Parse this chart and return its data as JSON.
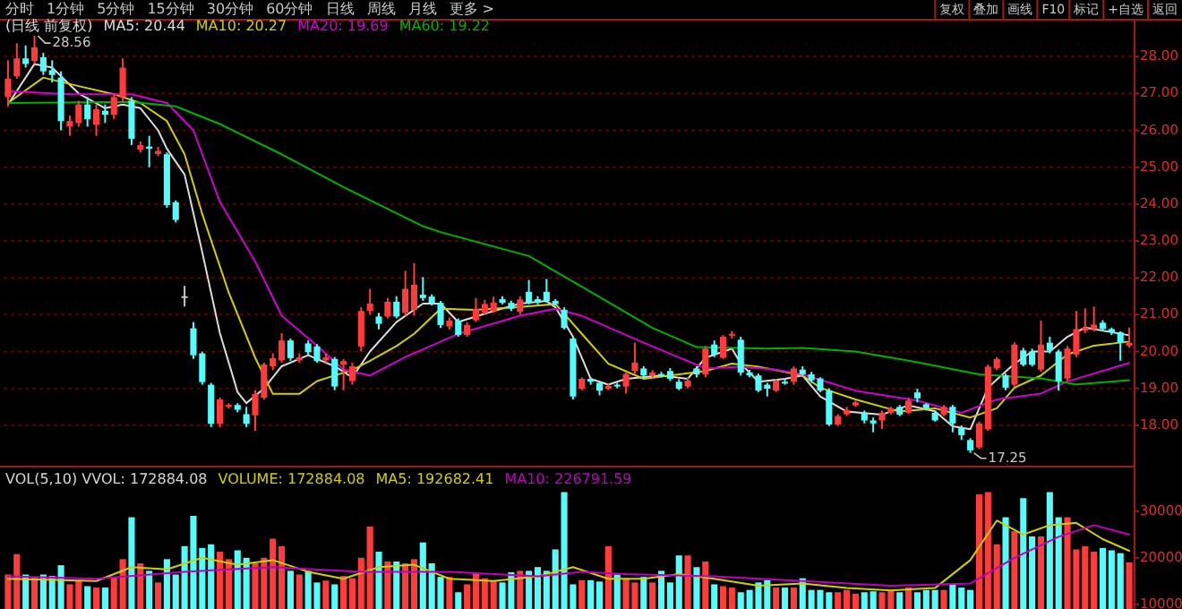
{
  "chart_data": [
    {
      "type": "candlestick",
      "subtitle": "(日线 前复权)",
      "legend": "top left",
      "grid": "y",
      "ylim": [
        17.0,
        29.0
      ],
      "yticks": [
        {
          "value": 18,
          "label": "18.00"
        },
        {
          "value": 19,
          "label": "19.00"
        },
        {
          "value": 20,
          "label": "20.00"
        },
        {
          "value": 21,
          "label": "21.00"
        },
        {
          "value": 22,
          "label": "22.00"
        },
        {
          "value": 23,
          "label": "23.00"
        },
        {
          "value": 24,
          "label": "24.00"
        },
        {
          "value": 25,
          "label": "25.00"
        },
        {
          "value": 26,
          "label": "26.00"
        },
        {
          "value": 27,
          "label": "27.00"
        },
        {
          "value": 28,
          "label": "28.00"
        }
      ],
      "categories": [
        null,
        null,
        null,
        null,
        null,
        null,
        null,
        null,
        null,
        null,
        null,
        null,
        null,
        null,
        null,
        null,
        null,
        null,
        null,
        null,
        null,
        null,
        null,
        null,
        null,
        null,
        null,
        null,
        null,
        null,
        null,
        null,
        null,
        null,
        null,
        null,
        null,
        null,
        null,
        null,
        null,
        null,
        null,
        null,
        null,
        null,
        null,
        null,
        null,
        null,
        null,
        null,
        null,
        null,
        null,
        null,
        null,
        null,
        null,
        null,
        null,
        null,
        null,
        null,
        null,
        null,
        null,
        null,
        null,
        null,
        null,
        null,
        null,
        null,
        null,
        null,
        null,
        null,
        null,
        null,
        null,
        null,
        null,
        null,
        null,
        null,
        null,
        null,
        null,
        null,
        null,
        null,
        null,
        null,
        null,
        null,
        null,
        null,
        null,
        null,
        null,
        null,
        null,
        null,
        null,
        null,
        null,
        null,
        null,
        null,
        null,
        null,
        null,
        null,
        null,
        null,
        null,
        null,
        null,
        null,
        null,
        null,
        null,
        null,
        null,
        null,
        null,
        null
      ],
      "ohlc": [
        [
          26.9,
          27.9,
          26.65,
          27.4
        ],
        [
          27.47,
          28.36,
          27.4,
          27.95
        ],
        [
          27.95,
          28.3,
          27.7,
          27.8
        ],
        [
          27.88,
          28.56,
          27.8,
          28.25
        ],
        [
          27.98,
          28.1,
          27.5,
          27.6
        ],
        [
          27.63,
          27.9,
          27.3,
          27.5
        ],
        [
          27.43,
          27.6,
          26.0,
          26.25
        ],
        [
          26.1,
          26.4,
          25.85,
          26.25
        ],
        [
          26.2,
          26.8,
          26.1,
          26.7
        ],
        [
          26.7,
          26.9,
          26.1,
          26.3
        ],
        [
          26.15,
          26.7,
          25.85,
          26.57
        ],
        [
          26.53,
          26.7,
          26.2,
          26.42
        ],
        [
          26.42,
          27.0,
          26.3,
          26.9
        ],
        [
          26.9,
          27.95,
          26.75,
          27.7
        ],
        [
          26.8,
          26.9,
          25.6,
          25.77
        ],
        [
          25.47,
          25.7,
          25.4,
          25.6
        ],
        [
          25.56,
          25.85,
          25.0,
          25.5
        ],
        [
          25.36,
          25.55,
          25.3,
          25.44
        ],
        [
          25.35,
          25.4,
          23.9,
          23.97
        ],
        [
          24.05,
          24.1,
          23.5,
          23.57
        ],
        [
          21.5,
          21.78,
          21.22,
          21.5
        ],
        [
          20.63,
          20.8,
          19.8,
          19.9
        ],
        [
          19.95,
          20.0,
          19.1,
          19.17
        ],
        [
          19.1,
          19.15,
          17.95,
          18.04
        ],
        [
          18.04,
          18.75,
          17.95,
          18.7
        ],
        [
          18.5,
          18.6,
          18.45,
          18.55
        ],
        [
          18.55,
          18.6,
          18.35,
          18.42
        ],
        [
          18.3,
          18.5,
          17.95,
          18.04
        ],
        [
          18.27,
          18.95,
          17.85,
          18.85
        ],
        [
          18.75,
          19.7,
          18.7,
          19.65
        ],
        [
          19.6,
          19.95,
          19.5,
          19.82
        ],
        [
          19.76,
          20.5,
          19.7,
          20.3
        ],
        [
          20.3,
          20.35,
          19.75,
          19.82
        ],
        [
          19.76,
          19.95,
          19.7,
          19.84
        ],
        [
          20.22,
          20.3,
          19.9,
          19.98
        ],
        [
          20.14,
          20.2,
          19.7,
          19.74
        ],
        [
          19.76,
          19.95,
          19.7,
          19.84
        ],
        [
          19.8,
          19.85,
          18.95,
          19.05
        ],
        [
          19.65,
          19.8,
          18.95,
          19.74
        ],
        [
          19.2,
          19.7,
          19.1,
          19.6
        ],
        [
          20.14,
          21.2,
          20.0,
          21.1
        ],
        [
          21.1,
          21.7,
          21.0,
          21.3
        ],
        [
          20.95,
          21.05,
          20.6,
          20.75
        ],
        [
          20.95,
          21.45,
          20.9,
          21.35
        ],
        [
          21.35,
          21.5,
          20.9,
          20.95
        ],
        [
          21.05,
          22.19,
          20.97,
          21.7
        ],
        [
          21.13,
          22.4,
          20.97,
          21.81
        ],
        [
          21.54,
          22.02,
          21.37,
          21.45
        ],
        [
          21.49,
          21.55,
          21.25,
          21.32
        ],
        [
          21.32,
          21.37,
          20.64,
          20.72
        ],
        [
          20.68,
          20.92,
          20.6,
          20.84
        ],
        [
          20.84,
          20.9,
          20.4,
          20.45
        ],
        [
          20.45,
          20.8,
          20.4,
          20.72
        ],
        [
          20.85,
          21.45,
          20.8,
          21.16
        ],
        [
          21.05,
          21.4,
          21.0,
          21.29
        ],
        [
          21.1,
          21.49,
          21.05,
          21.33
        ],
        [
          21.42,
          21.5,
          21.28,
          21.32
        ],
        [
          21.32,
          21.38,
          21.1,
          21.16
        ],
        [
          21.08,
          21.5,
          21.0,
          21.41
        ],
        [
          21.62,
          21.94,
          21.28,
          21.32
        ],
        [
          21.42,
          21.5,
          21.28,
          21.32
        ],
        [
          21.62,
          21.97,
          21.32,
          21.37
        ],
        [
          21.37,
          21.42,
          21.25,
          21.29
        ],
        [
          21.13,
          21.2,
          20.6,
          20.64
        ],
        [
          20.35,
          20.4,
          18.7,
          18.78
        ],
        [
          18.99,
          19.3,
          18.95,
          19.26
        ],
        [
          19.26,
          19.3,
          19.1,
          19.18
        ],
        [
          19.15,
          19.2,
          18.81,
          18.94
        ],
        [
          18.99,
          19.12,
          18.95,
          19.07
        ],
        [
          19.1,
          19.15,
          19.0,
          19.05
        ],
        [
          19.05,
          19.45,
          18.86,
          19.39
        ],
        [
          19.47,
          20.24,
          19.4,
          19.7
        ],
        [
          19.54,
          19.6,
          19.3,
          19.35
        ],
        [
          19.35,
          19.5,
          19.3,
          19.43
        ],
        [
          19.39,
          19.45,
          19.3,
          19.35
        ],
        [
          19.47,
          19.55,
          19.2,
          19.26
        ],
        [
          19.18,
          19.25,
          18.95,
          18.99
        ],
        [
          19.05,
          19.3,
          19.0,
          19.21
        ],
        [
          19.54,
          19.6,
          19.3,
          19.38
        ],
        [
          19.38,
          20.15,
          19.3,
          20.08
        ],
        [
          20.19,
          20.3,
          19.85,
          19.91
        ],
        [
          19.83,
          20.45,
          19.8,
          20.4
        ],
        [
          20.45,
          20.56,
          20.35,
          20.48
        ],
        [
          20.32,
          20.4,
          19.35,
          19.43
        ],
        [
          19.43,
          19.5,
          19.3,
          19.35
        ],
        [
          19.35,
          19.4,
          18.9,
          18.94
        ],
        [
          19.1,
          19.15,
          18.78,
          18.99
        ],
        [
          18.94,
          19.25,
          18.9,
          19.21
        ],
        [
          19.18,
          19.25,
          19.1,
          19.15
        ],
        [
          19.18,
          19.6,
          19.1,
          19.54
        ],
        [
          19.51,
          19.6,
          19.35,
          19.38
        ],
        [
          19.38,
          19.45,
          19.15,
          19.22
        ],
        [
          19.27,
          19.3,
          18.9,
          18.94
        ],
        [
          18.94,
          19.0,
          17.98,
          18.02
        ],
        [
          18.02,
          18.3,
          17.98,
          18.25
        ],
        [
          18.3,
          18.5,
          18.25,
          18.41
        ],
        [
          18.54,
          18.67,
          18.5,
          18.62
        ],
        [
          18.34,
          18.4,
          18.05,
          18.13
        ],
        [
          18.13,
          18.21,
          17.81,
          18.05
        ],
        [
          18.13,
          18.4,
          17.9,
          18.34
        ],
        [
          18.34,
          18.5,
          18.3,
          18.46
        ],
        [
          18.5,
          18.55,
          18.25,
          18.29
        ],
        [
          18.34,
          18.75,
          18.3,
          18.67
        ],
        [
          18.89,
          18.99,
          18.62,
          18.73
        ],
        [
          18.57,
          18.6,
          18.4,
          18.46
        ],
        [
          18.34,
          18.4,
          18.1,
          18.13
        ],
        [
          18.29,
          18.55,
          18.25,
          18.5
        ],
        [
          18.5,
          18.55,
          17.81,
          18.05
        ],
        [
          17.92,
          18.0,
          17.6,
          17.73
        ],
        [
          17.6,
          17.65,
          17.25,
          17.32
        ],
        [
          17.4,
          18.1,
          17.35,
          18.05
        ],
        [
          17.89,
          19.65,
          17.85,
          19.59
        ],
        [
          19.54,
          19.85,
          19.5,
          19.8
        ],
        [
          19.35,
          19.4,
          18.95,
          19.02
        ],
        [
          19.1,
          20.25,
          19.05,
          20.19
        ],
        [
          20.03,
          20.1,
          19.6,
          19.64
        ],
        [
          20.0,
          20.08,
          19.6,
          19.64
        ],
        [
          19.51,
          20.84,
          19.45,
          20.19
        ],
        [
          20.24,
          20.4,
          19.95,
          20.03
        ],
        [
          20.0,
          20.05,
          18.94,
          19.19
        ],
        [
          19.27,
          20.15,
          19.2,
          20.08
        ],
        [
          19.92,
          21.1,
          19.85,
          20.61
        ],
        [
          20.57,
          21.17,
          20.5,
          20.65
        ],
        [
          20.61,
          21.22,
          20.55,
          20.73
        ],
        [
          20.78,
          20.85,
          20.55,
          20.61
        ],
        [
          20.61,
          20.65,
          20.45,
          20.52
        ],
        [
          20.52,
          20.55,
          19.75,
          20.24
        ],
        [
          20.16,
          20.65,
          20.1,
          20.24
        ]
      ],
      "colors": [
        "#ff3c3c",
        "#ff3c3c",
        "#54fcfc",
        "#ff3c3c",
        "#54fcfc",
        "#54fcfc",
        "#54fcfc",
        "#ff3c3c",
        "#ff3c3c",
        "#54fcfc",
        "#ff3c3c",
        "#54fcfc",
        "#ff3c3c",
        "#ff3c3c",
        "#54fcfc",
        "#ff3c3c",
        "#54fcfc",
        "#ff3c3c",
        "#54fcfc",
        "#54fcfc",
        "#c8c8c8",
        "#54fcfc",
        "#54fcfc",
        "#54fcfc",
        "#ff3c3c",
        "#ff3c3c",
        "#54fcfc",
        "#54fcfc",
        "#ff3c3c",
        "#ff3c3c",
        "#ff3c3c",
        "#ff3c3c",
        "#54fcfc",
        "#ff3c3c",
        "#54fcfc",
        "#54fcfc",
        "#ff3c3c",
        "#54fcfc",
        "#ff3c3c",
        "#ff3c3c",
        "#ff3c3c",
        "#ff3c3c",
        "#54fcfc",
        "#ff3c3c",
        "#54fcfc",
        "#ff3c3c",
        "#ff3c3c",
        "#54fcfc",
        "#54fcfc",
        "#54fcfc",
        "#ff3c3c",
        "#54fcfc",
        "#ff3c3c",
        "#ff3c3c",
        "#ff3c3c",
        "#ff3c3c",
        "#54fcfc",
        "#54fcfc",
        "#ff3c3c",
        "#54fcfc",
        "#54fcfc",
        "#54fcfc",
        "#54fcfc",
        "#54fcfc",
        "#54fcfc",
        "#ff3c3c",
        "#54fcfc",
        "#54fcfc",
        "#ff3c3c",
        "#54fcfc",
        "#ff3c3c",
        "#ff3c3c",
        "#54fcfc",
        "#ff3c3c",
        "#54fcfc",
        "#54fcfc",
        "#54fcfc",
        "#ff3c3c",
        "#54fcfc",
        "#ff3c3c",
        "#54fcfc",
        "#ff3c3c",
        "#ff3c3c",
        "#54fcfc",
        "#54fcfc",
        "#54fcfc",
        "#54fcfc",
        "#ff3c3c",
        "#54fcfc",
        "#ff3c3c",
        "#54fcfc",
        "#54fcfc",
        "#54fcfc",
        "#54fcfc",
        "#ff3c3c",
        "#ff3c3c",
        "#ff3c3c",
        "#54fcfc",
        "#54fcfc",
        "#ff3c3c",
        "#ff3c3c",
        "#54fcfc",
        "#ff3c3c",
        "#54fcfc",
        "#54fcfc",
        "#54fcfc",
        "#ff3c3c",
        "#54fcfc",
        "#54fcfc",
        "#54fcfc",
        "#ff3c3c",
        "#ff3c3c",
        "#ff3c3c",
        "#54fcfc",
        "#ff3c3c",
        "#54fcfc",
        "#54fcfc",
        "#ff3c3c",
        "#54fcfc",
        "#54fcfc",
        "#ff3c3c",
        "#ff3c3c",
        "#ff3c3c",
        "#ff3c3c",
        "#54fcfc",
        "#54fcfc",
        "#54fcfc",
        "#ff3c3c"
      ],
      "series": [
        {
          "name": "MA5: 20.44",
          "type": "line",
          "color": "#dcdcdc",
          "values": [
            26.7,
            null,
            null,
            27.8,
            null,
            27.7,
            null,
            null,
            27.0,
            null,
            null,
            26.6,
            null,
            26.7,
            null,
            26.6,
            null,
            26.0,
            25.5,
            null,
            24.8,
            null,
            22.7,
            null,
            20.5,
            null,
            18.9,
            18.6,
            null,
            19.0,
            null,
            19.6,
            null,
            null,
            19.9,
            null,
            null,
            19.6,
            null,
            19.3,
            null,
            20.0,
            null,
            null,
            20.8,
            null,
            null,
            21.3,
            null,
            21.3,
            null,
            20.8,
            null,
            null,
            null,
            21.1,
            null,
            null,
            21.3,
            null,
            null,
            21.37,
            21.2,
            null,
            20.4,
            null,
            19.26,
            null,
            19.1,
            null,
            19.26,
            null,
            null,
            null,
            19.35,
            null,
            null,
            19.26,
            null,
            19.83,
            null,
            null,
            20.08,
            19.67,
            null,
            19.18,
            null,
            null,
            19.26,
            null,
            19.35,
            null,
            18.78,
            null,
            null,
            18.37,
            null,
            null,
            null,
            18.29,
            null,
            null,
            18.54,
            null,
            null,
            18.38,
            null,
            17.97,
            null,
            17.89,
            null,
            19.02,
            null,
            null,
            19.67,
            null,
            20.0,
            null,
            20.0,
            null,
            20.4,
            null,
            20.65,
            null,
            null,
            null,
            null,
            20.44
          ]
        },
        {
          "name": "MA10: 20.27",
          "type": "line",
          "color": "#d0d000",
          "values": [
            26.74,
            null,
            null,
            null,
            27.43,
            null,
            null,
            null,
            27.2,
            null,
            null,
            null,
            26.98,
            null,
            null,
            26.74,
            null,
            null,
            26.25,
            null,
            25.35,
            null,
            23.73,
            null,
            null,
            21.6,
            null,
            null,
            19.83,
            null,
            18.85,
            null,
            null,
            18.85,
            null,
            19.2,
            null,
            null,
            null,
            19.5,
            null,
            19.75,
            null,
            null,
            20.15,
            null,
            20.48,
            null,
            null,
            21.16,
            null,
            null,
            null,
            21.13,
            null,
            null,
            null,
            null,
            21.21,
            null,
            null,
            null,
            21.29,
            null,
            null,
            20.48,
            null,
            null,
            19.67,
            null,
            null,
            null,
            19.26,
            null,
            null,
            19.35,
            null,
            null,
            null,
            19.47,
            null,
            null,
            19.67,
            null,
            null,
            19.59,
            null,
            null,
            null,
            null,
            19.35,
            null,
            19.02,
            null,
            null,
            null,
            18.7,
            null,
            null,
            null,
            null,
            18.37,
            null,
            null,
            null,
            18.46,
            null,
            null,
            null,
            18.21,
            null,
            null,
            18.46,
            null,
            19.02,
            null,
            null,
            19.35,
            null,
            null,
            19.92,
            null,
            null,
            20.16,
            null,
            null,
            null,
            20.27
          ]
        },
        {
          "name": "MA20: 19.69",
          "type": "line",
          "color": "#d000d0",
          "values": [
            27.06,
            null,
            null,
            null,
            null,
            null,
            null,
            26.98,
            null,
            null,
            null,
            null,
            null,
            null,
            26.98,
            null,
            null,
            null,
            26.74,
            null,
            null,
            26.0,
            null,
            null,
            24.06,
            null,
            null,
            null,
            22.44,
            null,
            null,
            20.97,
            null,
            null,
            null,
            20.16,
            null,
            null,
            19.51,
            null,
            null,
            19.35,
            null,
            null,
            null,
            19.85,
            null,
            null,
            null,
            null,
            null,
            20.48,
            null,
            null,
            null,
            null,
            null,
            null,
            20.97,
            null,
            null,
            null,
            21.16,
            null,
            null,
            20.97,
            null,
            null,
            null,
            null,
            null,
            null,
            20.24,
            null,
            null,
            null,
            null,
            null,
            null,
            19.54,
            null,
            null,
            null,
            19.59,
            null,
            null,
            null,
            19.51,
            null,
            null,
            19.38,
            null,
            null,
            null,
            null,
            null,
            18.94,
            null,
            null,
            null,
            null,
            null,
            null,
            18.67,
            null,
            null,
            null,
            null,
            18.34,
            null,
            null,
            null,
            18.7,
            null,
            null,
            null,
            null,
            18.86,
            null,
            null,
            19.19,
            null,
            null,
            null,
            null,
            null,
            null,
            19.69
          ]
        },
        {
          "name": "MA60: 19.22",
          "type": "line",
          "color": "#00b000",
          "values": [
            26.74,
            null,
            null,
            null,
            null,
            null,
            null,
            null,
            null,
            null,
            null,
            null,
            null,
            null,
            26.77,
            null,
            null,
            null,
            null,
            26.65,
            null,
            null,
            null,
            null,
            26.17,
            null,
            null,
            null,
            null,
            null,
            null,
            25.35,
            null,
            null,
            null,
            null,
            null,
            null,
            24.46,
            null,
            null,
            null,
            null,
            null,
            null,
            null,
            null,
            23.4,
            null,
            23.24,
            null,
            null,
            null,
            null,
            null,
            null,
            null,
            null,
            null,
            22.59,
            null,
            null,
            null,
            null,
            null,
            null,
            21.62,
            null,
            null,
            null,
            null,
            null,
            null,
            20.64,
            null,
            null,
            null,
            null,
            20.12,
            null,
            null,
            null,
            null,
            null,
            null,
            null,
            20.08,
            null,
            null,
            null,
            20.1,
            null,
            null,
            null,
            null,
            null,
            20.0,
            null,
            null,
            null,
            null,
            null,
            null,
            19.71,
            null,
            null,
            null,
            null,
            null,
            null,
            19.38,
            null,
            null,
            null,
            null,
            null,
            null,
            19.27,
            null,
            null,
            null,
            19.11,
            null,
            null,
            null,
            null,
            null,
            19.22
          ]
        }
      ],
      "annotations": [
        "分时",
        "1分钟",
        "5分钟",
        "15分钟",
        "30分钟",
        "60分钟",
        "日线",
        "周线",
        "月线",
        "更多 >",
        "复权",
        "叠加",
        "画线",
        "F10",
        "标记",
        "+自选",
        "返回",
        "28.56",
        "17.25"
      ]
    },
    {
      "type": "bar",
      "title": "VOL(5,10) VVOL: 172884.08",
      "legend": "top left",
      "annotations": [
        "VOLUME: 172884.08"
      ],
      "ylim": [
        9000,
        39000
      ],
      "yticks": [
        10000,
        20000,
        30000
      ],
      "categories": [
        null,
        null,
        null,
        null,
        null,
        null,
        null,
        null,
        null,
        null,
        null,
        null,
        null,
        null,
        null,
        null,
        null,
        null,
        null,
        null,
        null,
        null,
        null,
        null,
        null,
        null,
        null,
        null,
        null,
        null,
        null,
        null,
        null,
        null,
        null,
        null,
        null,
        null,
        null,
        null,
        null,
        null,
        null,
        null,
        null,
        null,
        null,
        null,
        null,
        null,
        null,
        null,
        null,
        null,
        null,
        null,
        null,
        null,
        null,
        null,
        null,
        null,
        null,
        null,
        null,
        null,
        null,
        null,
        null,
        null,
        null,
        null,
        null,
        null,
        null,
        null,
        null,
        null,
        null,
        null,
        null,
        null,
        null,
        null,
        null,
        null,
        null,
        null,
        null,
        null,
        null,
        null,
        null,
        null,
        null,
        null,
        null,
        null,
        null,
        null,
        null,
        null,
        null,
        null,
        null,
        null,
        null,
        null,
        null,
        null,
        null,
        null,
        null,
        null,
        null,
        null,
        null,
        null,
        null,
        null,
        null,
        null,
        null,
        null,
        null,
        null,
        null,
        null
      ],
      "values": [
        16400,
        20800,
        16400,
        15900,
        16400,
        16100,
        18400,
        14300,
        15100,
        13900,
        13600,
        13600,
        15900,
        19700,
        28700,
        18800,
        17200,
        14700,
        19700,
        16400,
        22500,
        29000,
        22100,
        22900,
        21300,
        19700,
        21600,
        20000,
        18800,
        20000,
        24100,
        22500,
        17200,
        16400,
        17200,
        14700,
        15100,
        14300,
        16100,
        15600,
        20000,
        26700,
        21300,
        19200,
        19200,
        18800,
        19700,
        23300,
        18800,
        15900,
        15900,
        12600,
        14300,
        16900,
        15600,
        15200,
        14700,
        16900,
        17200,
        17200,
        18000,
        17200,
        21800,
        34100,
        14300,
        15200,
        15200,
        14900,
        22500,
        16400,
        15600,
        14700,
        15900,
        14700,
        17200,
        14700,
        20500,
        20500,
        18000,
        19200,
        14300,
        13900,
        13600,
        12600,
        13100,
        14700,
        15200,
        13600,
        13600,
        13600,
        15600,
        13100,
        13100,
        12600,
        12600,
        13100,
        12300,
        12600,
        12800,
        12600,
        13100,
        12600,
        13600,
        12600,
        13100,
        13100,
        13100,
        14300,
        13600,
        13100,
        33600,
        34100,
        22900,
        28700,
        25700,
        32800,
        24600,
        24600,
        34100,
        28700,
        28700,
        21800,
        22500,
        21300,
        22100,
        21600,
        21000,
        19000
      ],
      "colors": [
        "#ff3c3c",
        "#ff3c3c",
        "#54fcfc",
        "#ff3c3c",
        "#54fcfc",
        "#54fcfc",
        "#54fcfc",
        "#ff3c3c",
        "#ff3c3c",
        "#54fcfc",
        "#ff3c3c",
        "#54fcfc",
        "#ff3c3c",
        "#ff3c3c",
        "#54fcfc",
        "#ff3c3c",
        "#54fcfc",
        "#ff3c3c",
        "#54fcfc",
        "#54fcfc",
        "#54fcfc",
        "#54fcfc",
        "#54fcfc",
        "#54fcfc",
        "#ff3c3c",
        "#ff3c3c",
        "#54fcfc",
        "#54fcfc",
        "#ff3c3c",
        "#ff3c3c",
        "#ff3c3c",
        "#ff3c3c",
        "#54fcfc",
        "#ff3c3c",
        "#54fcfc",
        "#54fcfc",
        "#ff3c3c",
        "#54fcfc",
        "#ff3c3c",
        "#ff3c3c",
        "#ff3c3c",
        "#ff3c3c",
        "#54fcfc",
        "#ff3c3c",
        "#54fcfc",
        "#ff3c3c",
        "#ff3c3c",
        "#54fcfc",
        "#54fcfc",
        "#54fcfc",
        "#ff3c3c",
        "#54fcfc",
        "#ff3c3c",
        "#ff3c3c",
        "#ff3c3c",
        "#ff3c3c",
        "#54fcfc",
        "#54fcfc",
        "#ff3c3c",
        "#54fcfc",
        "#54fcfc",
        "#54fcfc",
        "#54fcfc",
        "#54fcfc",
        "#54fcfc",
        "#ff3c3c",
        "#54fcfc",
        "#54fcfc",
        "#ff3c3c",
        "#54fcfc",
        "#ff3c3c",
        "#ff3c3c",
        "#54fcfc",
        "#ff3c3c",
        "#54fcfc",
        "#54fcfc",
        "#54fcfc",
        "#ff3c3c",
        "#54fcfc",
        "#ff3c3c",
        "#54fcfc",
        "#ff3c3c",
        "#ff3c3c",
        "#54fcfc",
        "#54fcfc",
        "#54fcfc",
        "#54fcfc",
        "#ff3c3c",
        "#54fcfc",
        "#ff3c3c",
        "#54fcfc",
        "#54fcfc",
        "#54fcfc",
        "#54fcfc",
        "#ff3c3c",
        "#ff3c3c",
        "#ff3c3c",
        "#54fcfc",
        "#54fcfc",
        "#ff3c3c",
        "#ff3c3c",
        "#54fcfc",
        "#ff3c3c",
        "#54fcfc",
        "#54fcfc",
        "#54fcfc",
        "#ff3c3c",
        "#54fcfc",
        "#54fcfc",
        "#54fcfc",
        "#ff3c3c",
        "#ff3c3c",
        "#ff3c3c",
        "#54fcfc",
        "#ff3c3c",
        "#54fcfc",
        "#54fcfc",
        "#ff3c3c",
        "#54fcfc",
        "#54fcfc",
        "#ff3c3c",
        "#ff3c3c",
        "#ff3c3c",
        "#ff3c3c",
        "#54fcfc",
        "#54fcfc",
        "#54fcfc",
        "#ff3c3c"
      ],
      "series": [
        {
          "name": "MA5: 192682.41",
          "type": "line",
          "color": "#d0d000",
          "values": [
            15500,
            null,
            null,
            null,
            null,
            null,
            null,
            null,
            null,
            null,
            15000,
            null,
            null,
            null,
            18000,
            null,
            null,
            null,
            17500,
            null,
            null,
            null,
            20000,
            null,
            null,
            null,
            18500,
            null,
            null,
            null,
            19500,
            null,
            null,
            null,
            17000,
            null,
            null,
            null,
            15500,
            null,
            null,
            null,
            18000,
            null,
            null,
            null,
            18500,
            null,
            null,
            null,
            15500,
            null,
            null,
            null,
            null,
            15000,
            null,
            null,
            null,
            null,
            16000,
            null,
            null,
            null,
            18000,
            null,
            null,
            null,
            15500,
            null,
            null,
            null,
            15500,
            null,
            null,
            null,
            16500,
            null,
            null,
            null,
            15500,
            null,
            null,
            null,
            null,
            14000,
            null,
            null,
            null,
            null,
            14500,
            null,
            null,
            null,
            null,
            13500,
            null,
            null,
            null,
            null,
            13000,
            null,
            null,
            null,
            null,
            13500,
            null,
            null,
            null,
            19500,
            null,
            null,
            28000,
            null,
            null,
            25000,
            null,
            null,
            27000,
            null,
            null,
            27500,
            null,
            null,
            24000,
            null,
            null,
            21500
          ]
        },
        {
          "name": "MA10: 226791.59",
          "type": "line",
          "color": "#c000c0",
          "values": [
            16000,
            null,
            null,
            null,
            null,
            null,
            null,
            null,
            null,
            null,
            15500,
            null,
            null,
            null,
            null,
            null,
            null,
            null,
            null,
            null,
            17000,
            null,
            null,
            null,
            null,
            null,
            null,
            null,
            null,
            null,
            18000,
            null,
            null,
            null,
            null,
            null,
            null,
            null,
            null,
            null,
            17000,
            null,
            null,
            null,
            null,
            null,
            null,
            null,
            null,
            null,
            17000,
            null,
            null,
            null,
            null,
            null,
            null,
            null,
            null,
            null,
            16000,
            null,
            null,
            null,
            null,
            17000,
            null,
            null,
            null,
            null,
            16500,
            null,
            null,
            null,
            null,
            null,
            null,
            null,
            null,
            null,
            16000,
            null,
            null,
            null,
            null,
            null,
            null,
            null,
            null,
            null,
            15000,
            null,
            null,
            null,
            null,
            null,
            null,
            null,
            null,
            null,
            14000,
            null,
            null,
            null,
            null,
            null,
            null,
            null,
            null,
            14500,
            null,
            null,
            null,
            null,
            20000,
            null,
            null,
            null,
            null,
            24500,
            null,
            null,
            null,
            27000,
            null,
            null,
            null,
            25000
          ]
        }
      ]
    }
  ]
}
